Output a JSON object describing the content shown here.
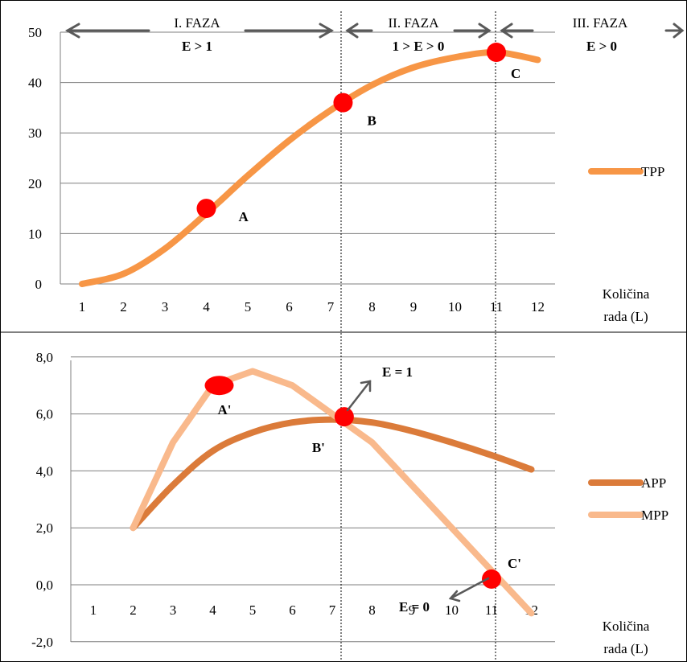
{
  "phases": [
    {
      "name": "I. FAZA",
      "condition": "E > 1"
    },
    {
      "name": "II. FAZA",
      "condition": "1 > E > 0"
    },
    {
      "name": "III. FAZA",
      "condition": "E > 0"
    }
  ],
  "colors": {
    "tpp": "#f79646",
    "app": "#db7b3a",
    "mpp": "#f9b98c",
    "point": "#ff0000",
    "grid": "#7f7f7f",
    "arrow": "#595959"
  },
  "chart_data": [
    {
      "type": "line",
      "xlabel": "Količina rada (L)",
      "ylabel": "",
      "categories": [
        1,
        2,
        3,
        4,
        5,
        6,
        7,
        8,
        9,
        10,
        11,
        12
      ],
      "ylim": [
        0,
        50
      ],
      "yticks": [
        "0",
        "10",
        "20",
        "30",
        "40",
        "50"
      ],
      "series": [
        {
          "name": "TPP",
          "values": [
            0,
            2,
            7,
            14,
            21.5,
            28.5,
            34.5,
            39.5,
            43,
            45,
            46,
            44.5
          ]
        }
      ],
      "points": [
        {
          "label": "A",
          "x": 4,
          "y": 15
        },
        {
          "label": "B",
          "x": 7.3,
          "y": 36
        },
        {
          "label": "C",
          "x": 11,
          "y": 46
        }
      ],
      "grid": true,
      "legend": "right"
    },
    {
      "type": "line",
      "xlabel": "Količina rada (L)",
      "ylabel": "",
      "categories": [
        1,
        2,
        3,
        4,
        5,
        6,
        7,
        8,
        9,
        10,
        11,
        12
      ],
      "ylim": [
        -2,
        8
      ],
      "yticks": [
        "-2,0",
        "0,0",
        "2,0",
        "4,0",
        "6,0",
        "8,0"
      ],
      "series": [
        {
          "name": "APP",
          "values": [
            null,
            2,
            3.5,
            4.7,
            5.35,
            5.7,
            5.8,
            5.7,
            5.4,
            5.0,
            4.55,
            4.05
          ]
        },
        {
          "name": "MPP",
          "values": [
            null,
            2,
            5,
            7,
            7.5,
            7,
            6,
            5,
            3.5,
            2,
            0.5,
            -1
          ]
        }
      ],
      "points": [
        {
          "label": "A'",
          "x": 4,
          "y": 7
        },
        {
          "label": "B'",
          "x": 7.3,
          "y": 5.9
        },
        {
          "label": "C'",
          "x": 11,
          "y": 0.2
        }
      ],
      "annotations": [
        "E = 1",
        "E = 0"
      ],
      "grid": true,
      "legend": "right"
    }
  ]
}
